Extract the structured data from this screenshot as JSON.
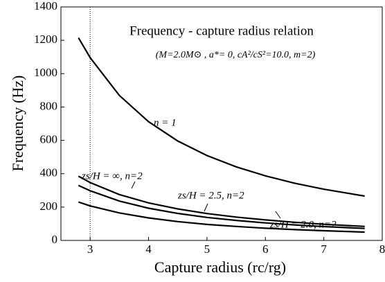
{
  "chart_data": {
    "type": "line",
    "title": "Frequency - capture radius relation",
    "subtitle": "(M=2.0M⊙ , a*= 0,  cA²/cS²=10.0,  m=2)",
    "x_label": "Capture radius   (rc/rg)",
    "y_label": "Frequency   (Hz)",
    "x": [
      2.8,
      3,
      3.5,
      4,
      4.5,
      5,
      5.5,
      6,
      6.5,
      7,
      7.7
    ],
    "series": [
      {
        "name": "n = 1",
        "color": "#000000",
        "values": [
          1215,
          1096,
          869,
          712,
          596,
          509,
          441,
          387,
          343,
          307,
          266
        ]
      },
      {
        "name": "zs/H = ∞, n=2",
        "color": "#000000",
        "values": [
          385,
          347,
          275,
          225,
          189,
          161,
          140,
          123,
          109,
          97,
          84
        ]
      },
      {
        "name": "zs/H = 2.5, n=2",
        "color": "#000000",
        "values": [
          330,
          298,
          236,
          193,
          162,
          138,
          120,
          105,
          93,
          83,
          72
        ]
      },
      {
        "name": "zs/H = 2.0, n=2",
        "color": "#000000",
        "values": [
          230,
          207,
          165,
          135,
          113,
          96,
          84,
          73,
          65,
          58,
          50
        ]
      }
    ],
    "vline": 3,
    "xlim": [
      2.5,
      8
    ],
    "xticks": [
      3,
      4,
      5,
      6,
      7,
      8
    ],
    "ylim": [
      0,
      1400
    ],
    "yticks": [
      0,
      200,
      400,
      600,
      800,
      1000,
      1200,
      1400
    ]
  }
}
